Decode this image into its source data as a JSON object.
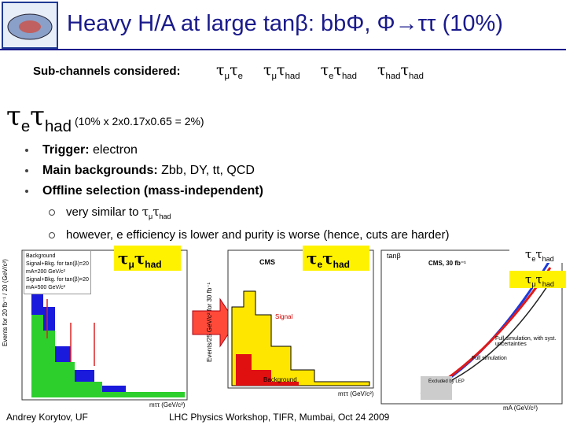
{
  "header": {
    "title": "Heavy H/A at large tanβ: bbΦ, Φ→ττ (10%)"
  },
  "subchannels": {
    "label": "Sub-channels considered:",
    "items": [
      [
        {
          "base": "τ",
          "sub": "μ"
        },
        {
          "base": "τ",
          "sub": "e"
        }
      ],
      [
        {
          "base": "τ",
          "sub": "μ"
        },
        {
          "base": "τ",
          "sub": "had"
        }
      ],
      [
        {
          "base": "τ",
          "sub": "e"
        },
        {
          "base": "τ",
          "sub": "had"
        }
      ],
      [
        {
          "base": "τ",
          "sub": "had"
        },
        {
          "base": "τ",
          "sub": "had"
        }
      ]
    ]
  },
  "section": {
    "heading": [
      {
        "base": "τ",
        "sub": "e"
      },
      {
        "base": "τ",
        "sub": "had"
      }
    ],
    "note": "(10% x 2x0.17x0.65 = 2%)"
  },
  "bullets": [
    {
      "label": "Trigger:",
      "text": " electron"
    },
    {
      "label": "Main backgrounds:",
      "text": " Zbb, DY, tt, QCD"
    },
    {
      "label": "Offline selection (mass-independent)",
      "text": ""
    }
  ],
  "subbullets": [
    {
      "text": "very similar to ",
      "sym": [
        {
          "base": "τ",
          "sub": "μ"
        },
        {
          "base": "τ",
          "sub": "had"
        }
      ]
    },
    {
      "text": "however, e efficiency is lower and purity is worse (hence, cuts are harder)",
      "sym": []
    }
  ],
  "plots": [
    {
      "tag": [
        {
          "base": "τ",
          "sub": "μ"
        },
        {
          "base": "τ",
          "sub": "had"
        }
      ],
      "ylabel": "Events for 20 fb⁻¹ / 20 (GeV/c²)",
      "xlabel": "mττ (GeV/c²)",
      "legend": [
        "Background",
        "Signal+Bkg. for tan(β)=20",
        "mA=200 GeV/c²",
        "Signal+Bkg. for tan(β)=20",
        "mA=500 GeV/c²"
      ]
    },
    {
      "tag": [
        {
          "base": "τ",
          "sub": "e"
        },
        {
          "base": "τ",
          "sub": "had"
        }
      ],
      "ylabel": "Events/25 GeV/c² for 30 fb⁻¹",
      "xlabel": "mττ (GeV/c²)",
      "labels": [
        "CMS",
        "Signal",
        "Background"
      ]
    },
    {
      "ylabel": "tanβ",
      "xlabel": "mA (GeV/c²)",
      "labels": [
        "CMS, 30 fb⁻¹",
        "Full simulation, with syst. uncertainties",
        "Full simulation",
        "Excluded by LEP"
      ],
      "legend": [
        [
          {
            "base": "τ",
            "sub": "e"
          },
          {
            "base": "τ",
            "sub": "had"
          }
        ],
        [
          {
            "base": "τ",
            "sub": "μ"
          },
          {
            "base": "τ",
            "sub": "had"
          }
        ]
      ]
    }
  ],
  "footer": {
    "author": "Andrey Korytov, UF",
    "event": "LHC Physics Workshop, TIFR, Mumbai, Oct 24 2009"
  }
}
